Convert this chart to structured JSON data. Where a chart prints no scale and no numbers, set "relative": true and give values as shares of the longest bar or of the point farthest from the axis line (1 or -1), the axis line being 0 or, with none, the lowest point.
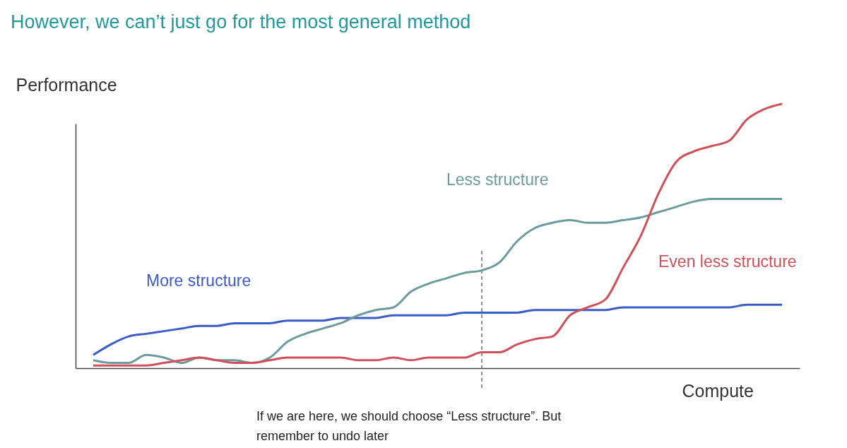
{
  "chart_data": {
    "type": "line",
    "title": "However, we can’t just go for the most general method",
    "xlabel": "Compute",
    "ylabel": "Performance",
    "relative": true,
    "grid": false,
    "categories": [
      null,
      null,
      null,
      null,
      null,
      null,
      null,
      null,
      null,
      null,
      null,
      null,
      null,
      null,
      null,
      null,
      null,
      null,
      null,
      null,
      null,
      null,
      null,
      null,
      null,
      null,
      null,
      null,
      null,
      null,
      null,
      null,
      null,
      null,
      null,
      null,
      null,
      null,
      null,
      null,
      null
    ],
    "series": [
      {
        "name": "More structure",
        "color": "#3b5cc4",
        "values": [
          0.05,
          0.09,
          0.12,
          0.13,
          0.14,
          0.15,
          0.16,
          0.16,
          0.17,
          0.17,
          0.17,
          0.18,
          0.18,
          0.18,
          0.19,
          0.19,
          0.19,
          0.2,
          0.2,
          0.2,
          0.2,
          0.21,
          0.21,
          0.21,
          0.21,
          0.22,
          0.22,
          0.22,
          0.22,
          0.22,
          0.23,
          0.23,
          0.23,
          0.23,
          0.23,
          0.23,
          0.23,
          0.24,
          0.24,
          0.24,
          null
        ]
      },
      {
        "name": "Less structure",
        "color": "#6b9b9d",
        "values": [
          0.03,
          0.02,
          0.02,
          0.05,
          0.04,
          0.02,
          0.04,
          0.03,
          0.03,
          0.02,
          0.04,
          0.1,
          0.13,
          0.15,
          0.17,
          0.2,
          0.22,
          0.23,
          0.29,
          0.32,
          0.34,
          0.36,
          0.37,
          0.4,
          0.48,
          0.53,
          0.55,
          0.56,
          0.55,
          0.55,
          0.56,
          0.57,
          0.59,
          0.61,
          0.63,
          0.64,
          0.64,
          0.64,
          0.64,
          0.64,
          null
        ]
      },
      {
        "name": "Even less structure",
        "color": "#d0505a",
        "values": [
          0.01,
          0.01,
          0.01,
          0.01,
          0.02,
          0.03,
          0.04,
          0.03,
          0.02,
          0.02,
          0.03,
          0.04,
          0.04,
          0.04,
          0.04,
          0.03,
          0.03,
          0.04,
          0.03,
          0.04,
          0.04,
          0.04,
          0.06,
          0.06,
          0.09,
          0.11,
          0.12,
          0.2,
          0.23,
          0.26,
          0.38,
          0.5,
          0.66,
          0.78,
          0.82,
          0.84,
          0.86,
          0.94,
          0.98,
          1.0,
          null
        ]
      }
    ],
    "annotations": [
      "If we are here, we should choose “Less structure”. But remember to undo later"
    ]
  }
}
